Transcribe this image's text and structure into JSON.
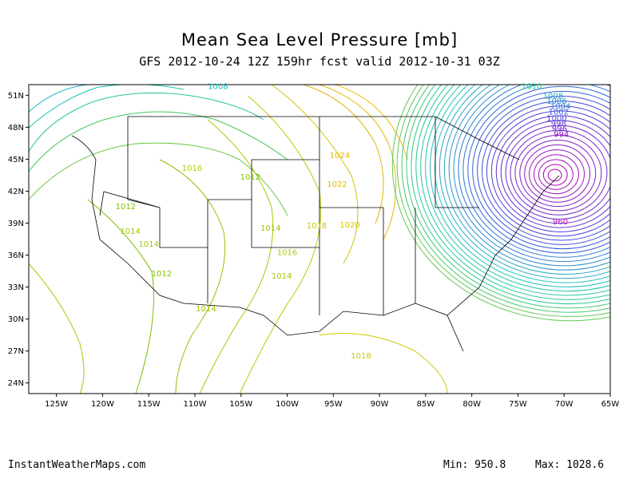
{
  "header": {
    "title": "Mean Sea Level Pressure [mb]",
    "subtitle": "GFS 2012-10-24 12Z 159hr fcst valid 2012-10-31 03Z"
  },
  "axes": {
    "lat_labels": [
      "51N",
      "48N",
      "45N",
      "42N",
      "39N",
      "36N",
      "33N",
      "30N",
      "27N",
      "24N"
    ],
    "lon_labels": [
      "125W",
      "120W",
      "115W",
      "110W",
      "105W",
      "100W",
      "95W",
      "90W",
      "85W",
      "80W",
      "75W",
      "70W",
      "65W"
    ]
  },
  "contour_labels": [
    {
      "text": "1008",
      "lon": -107.5,
      "lat": 51.6,
      "color": "#1fb6b6"
    },
    {
      "text": "1010",
      "lon": -73.5,
      "lat": 51.6,
      "color": "#1fc89a"
    },
    {
      "text": "1008",
      "lon": -71.2,
      "lat": 50.7,
      "color": "#22a8c8"
    },
    {
      "text": "1006",
      "lon": -70.8,
      "lat": 50.2,
      "color": "#2a90d0"
    },
    {
      "text": "1004",
      "lon": -70.4,
      "lat": 49.7,
      "color": "#2f78d4"
    },
    {
      "text": "1002",
      "lon": -70.6,
      "lat": 49.2,
      "color": "#3a5fd8"
    },
    {
      "text": "1000",
      "lon": -70.8,
      "lat": 48.6,
      "color": "#4a48d8"
    },
    {
      "text": "998",
      "lon": -70.6,
      "lat": 48.1,
      "color": "#5a30d0"
    },
    {
      "text": "996",
      "lon": -70.5,
      "lat": 47.6,
      "color": "#6a20c8"
    },
    {
      "text": "994",
      "lon": -70.3,
      "lat": 47.1,
      "color": "#8a10c0"
    },
    {
      "text": "960",
      "lon": -70.4,
      "lat": 38.9,
      "color": "#b010b0"
    },
    {
      "text": "1024",
      "lon": -94.3,
      "lat": 45.1,
      "color": "#e6b800"
    },
    {
      "text": "1022",
      "lon": -94.6,
      "lat": 42.4,
      "color": "#e0c000"
    },
    {
      "text": "1020",
      "lon": -93.2,
      "lat": 38.6,
      "color": "#d8c400"
    },
    {
      "text": "1018",
      "lon": -96.8,
      "lat": 38.5,
      "color": "#ccc800"
    },
    {
      "text": "1018",
      "lon": -92.0,
      "lat": 26.3,
      "color": "#ccc800"
    },
    {
      "text": "1016",
      "lon": -110.3,
      "lat": 43.9,
      "color": "#b4cc00"
    },
    {
      "text": "1016",
      "lon": -100.0,
      "lat": 36.0,
      "color": "#b4cc00"
    },
    {
      "text": "1014",
      "lon": -101.8,
      "lat": 38.3,
      "color": "#9cc800"
    },
    {
      "text": "1014",
      "lon": -117.0,
      "lat": 38.0,
      "color": "#9cc800"
    },
    {
      "text": "1014",
      "lon": -115.0,
      "lat": 36.8,
      "color": "#9cc800"
    },
    {
      "text": "1014",
      "lon": -100.6,
      "lat": 33.8,
      "color": "#9cc800"
    },
    {
      "text": "1014",
      "lon": -108.8,
      "lat": 30.7,
      "color": "#9cc800"
    },
    {
      "text": "1012",
      "lon": -117.5,
      "lat": 40.3,
      "color": "#80c400"
    },
    {
      "text": "1012",
      "lon": -104.0,
      "lat": 43.1,
      "color": "#80c400"
    },
    {
      "text": "1012",
      "lon": -113.6,
      "lat": 34.0,
      "color": "#80c400"
    }
  ],
  "footer": {
    "site": "InstantWeatherMaps.com",
    "min_text": "Min:  950.8",
    "max_text": "Max: 1028.6"
  },
  "extent": {
    "lon": [
      -128,
      -65
    ],
    "lat": [
      23,
      52
    ]
  }
}
